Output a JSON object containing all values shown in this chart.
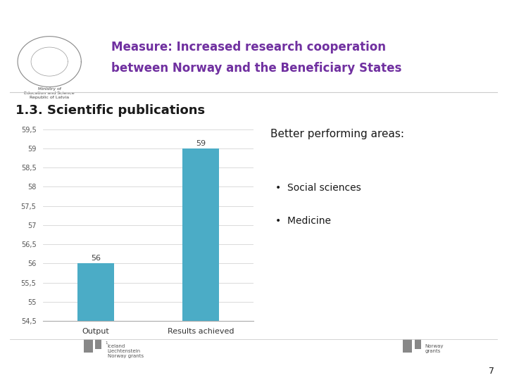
{
  "title_line1": "Measure: Increased research cooperation",
  "title_line2": "between Norway and the Beneficiary States",
  "title_color": "#7030A0",
  "section_title": "1.3. Scientific publications",
  "bar_categories": [
    "Output",
    "Results achieved"
  ],
  "bar_values": [
    56,
    59
  ],
  "bar_color": "#4BACC6",
  "bar_label_color": "#404040",
  "ylim_min": 54.5,
  "ylim_max": 59.5,
  "yticks": [
    54.5,
    55,
    55.5,
    56,
    56.5,
    57,
    57.5,
    58,
    58.5,
    59,
    59.5
  ],
  "ytick_labels": [
    "59,5",
    "59",
    "58,5",
    "58",
    "57,5",
    "57",
    "56,5",
    "56",
    "55,5",
    "55",
    "54,5"
  ],
  "better_title": "Better performing areas:",
  "bullet_points": [
    "Social sciences",
    "Medicine"
  ],
  "bg_color": "#FFFFFF",
  "header_purple_rect": "#7030A0",
  "page_number": "7",
  "bar_label_fontsize": 8,
  "axis_tick_fontsize": 7,
  "xticklabel_fontsize": 8,
  "section_title_fontsize": 13,
  "title_fontsize": 12,
  "better_title_fontsize": 11,
  "bullet_fontsize": 10,
  "footer_fontsize": 5,
  "grid_color": "#CCCCCC",
  "spine_color": "#AAAAAA"
}
